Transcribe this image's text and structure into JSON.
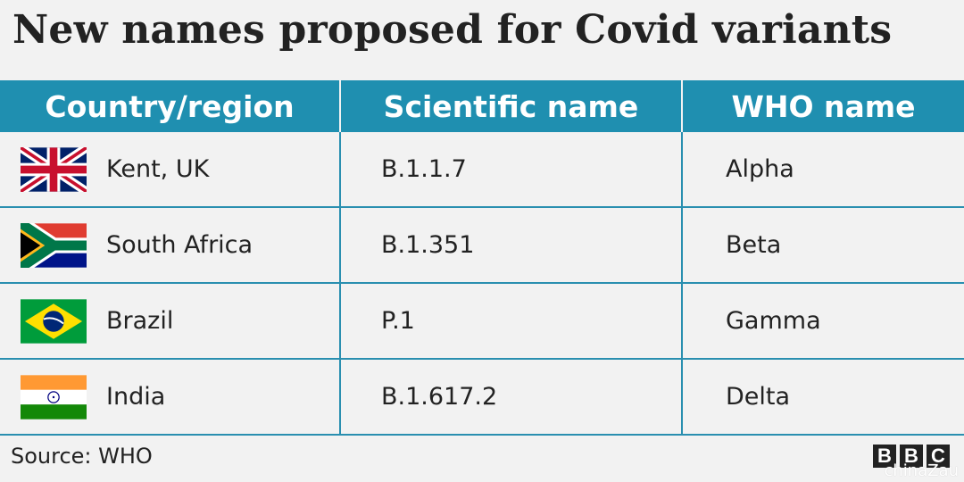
{
  "title": "New names proposed for Covid variants",
  "columns": [
    "Country/region",
    "Scientific name",
    "WHO name"
  ],
  "rows": [
    {
      "flag": "uk-flag-icon",
      "country": "Kent, UK",
      "scientific": "B.1.1.7",
      "who": "Alpha"
    },
    {
      "flag": "south-africa-flag-icon",
      "country": "South Africa",
      "scientific": "B.1.351",
      "who": "Beta"
    },
    {
      "flag": "brazil-flag-icon",
      "country": "Brazil",
      "scientific": "P.1",
      "who": "Gamma"
    },
    {
      "flag": "india-flag-icon",
      "country": "India",
      "scientific": "B.1.617.2",
      "who": "Delta"
    }
  ],
  "source": "Source: WHO",
  "logo": [
    "B",
    "B",
    "C"
  ],
  "watermark": "chinaZau",
  "colors": {
    "header": "#1f8fb0",
    "background": "#f2f2f2",
    "grid": "#2a8fb0"
  }
}
